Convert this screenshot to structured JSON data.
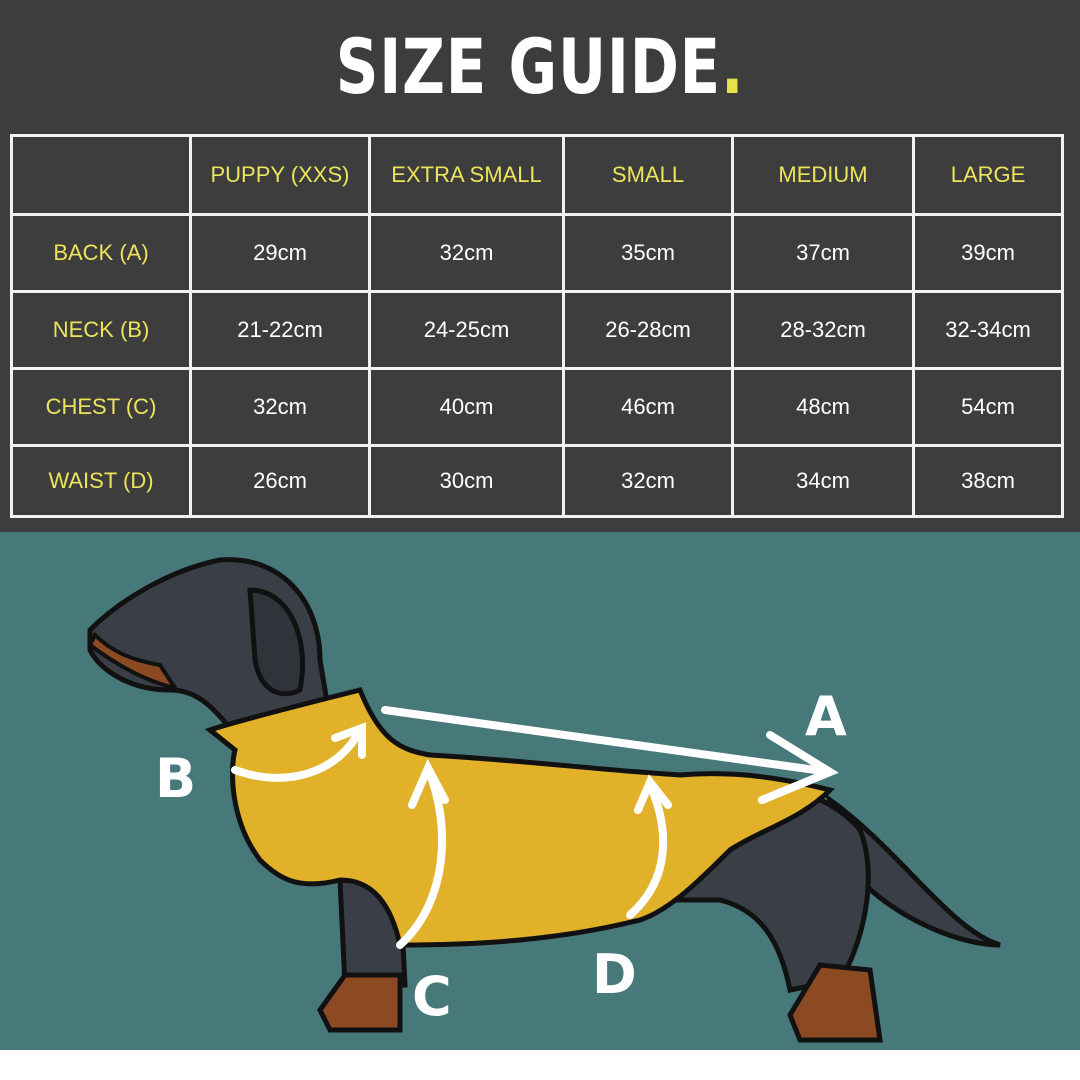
{
  "title": {
    "text": "SIZE GUIDE",
    "dot": "."
  },
  "colors": {
    "background": "#3d3d3d",
    "accent": "#ece45a",
    "panel": "#47787a",
    "coat": "#e2b12a"
  },
  "table": {
    "headers": [
      "",
      "PUPPY (XXS)",
      "EXTRA SMALL",
      "SMALL",
      "MEDIUM",
      "LARGE"
    ],
    "rows": [
      {
        "label": "BACK (A)",
        "values": [
          "29cm",
          "32cm",
          "35cm",
          "37cm",
          "39cm"
        ]
      },
      {
        "label": "NECK (B)",
        "values": [
          "21-22cm",
          "24-25cm",
          "26-28cm",
          "28-32cm",
          "32-34cm"
        ]
      },
      {
        "label": "CHEST (C)",
        "values": [
          "32cm",
          "40cm",
          "46cm",
          "48cm",
          "54cm"
        ]
      },
      {
        "label": "WAIST (D)",
        "values": [
          "26cm",
          "30cm",
          "32cm",
          "34cm",
          "38cm"
        ]
      }
    ]
  },
  "diagram": {
    "labels": {
      "a": "A",
      "b": "B",
      "c": "C",
      "d": "D"
    }
  }
}
